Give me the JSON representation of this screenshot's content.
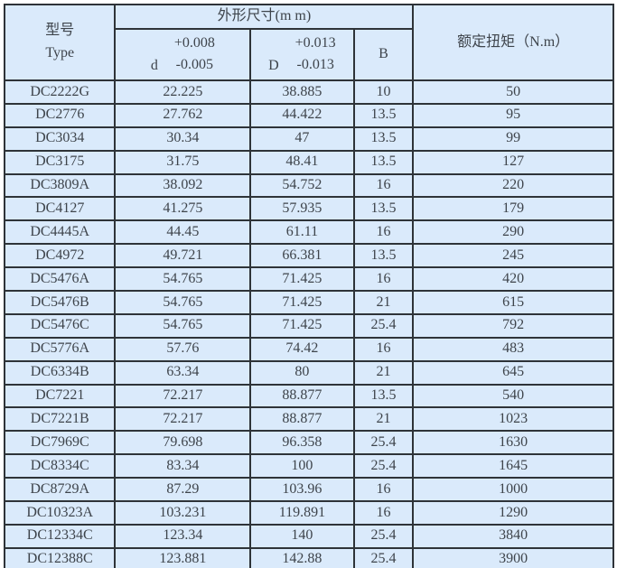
{
  "colors": {
    "cell_bg": "#daeafb",
    "border": "#2e3338",
    "text": "#3e444b"
  },
  "table": {
    "header": {
      "type_label": "型号",
      "type_sub_label": "Type",
      "dims_group_label": "外形尺寸(m m)",
      "d_col": {
        "letter": "d",
        "upper": "+0.008",
        "lower": "-0.005"
      },
      "D_col": {
        "letter": "D",
        "upper": "+0.013",
        "lower": "-0.013"
      },
      "b_label": "B",
      "torque_label": "额定扭矩（N.m）"
    },
    "rows": [
      {
        "type": "DC2222G",
        "d": "22.225",
        "D": "38.885",
        "B": "10",
        "torque": "50"
      },
      {
        "type": "DC2776",
        "d": "27.762",
        "D": "44.422",
        "B": "13.5",
        "torque": "95"
      },
      {
        "type": "DC3034",
        "d": "30.34",
        "D": "47",
        "B": "13.5",
        "torque": "99"
      },
      {
        "type": "DC3175",
        "d": "31.75",
        "D": "48.41",
        "B": "13.5",
        "torque": "127"
      },
      {
        "type": "DC3809A",
        "d": "38.092",
        "D": "54.752",
        "B": "16",
        "torque": "220"
      },
      {
        "type": "DC4127",
        "d": "41.275",
        "D": "57.935",
        "B": "13.5",
        "torque": "179"
      },
      {
        "type": "DC4445A",
        "d": "44.45",
        "D": "61.11",
        "B": "16",
        "torque": "290"
      },
      {
        "type": "DC4972",
        "d": "49.721",
        "D": "66.381",
        "B": "13.5",
        "torque": "245"
      },
      {
        "type": "DC5476A",
        "d": "54.765",
        "D": "71.425",
        "B": "16",
        "torque": "420"
      },
      {
        "type": "DC5476B",
        "d": "54.765",
        "D": "71.425",
        "B": "21",
        "torque": "615"
      },
      {
        "type": "DC5476C",
        "d": "54.765",
        "D": "71.425",
        "B": "25.4",
        "torque": "792"
      },
      {
        "type": "DC5776A",
        "d": "57.76",
        "D": "74.42",
        "B": "16",
        "torque": "483"
      },
      {
        "type": "DC6334B",
        "d": "63.34",
        "D": "80",
        "B": "21",
        "torque": "645"
      },
      {
        "type": "DC7221",
        "d": "72.217",
        "D": "88.877",
        "B": "13.5",
        "torque": "540"
      },
      {
        "type": "DC7221B",
        "d": "72.217",
        "D": "88.877",
        "B": "21",
        "torque": "1023"
      },
      {
        "type": "DC7969C",
        "d": "79.698",
        "D": "96.358",
        "B": "25.4",
        "torque": "1630"
      },
      {
        "type": "DC8334C",
        "d": "83.34",
        "D": "100",
        "B": "25.4",
        "torque": "1645"
      },
      {
        "type": "DC8729A",
        "d": "87.29",
        "D": "103.96",
        "B": "16",
        "torque": "1000"
      },
      {
        "type": "DC10323A",
        "d": "103.231",
        "D": "119.891",
        "B": "16",
        "torque": "1290"
      },
      {
        "type": "DC12334C",
        "d": "123.34",
        "D": "140",
        "B": "25.4",
        "torque": "3840"
      },
      {
        "type": "DC12388C",
        "d": "123.881",
        "D": "142.88",
        "B": "25.4",
        "torque": "3900"
      }
    ]
  }
}
